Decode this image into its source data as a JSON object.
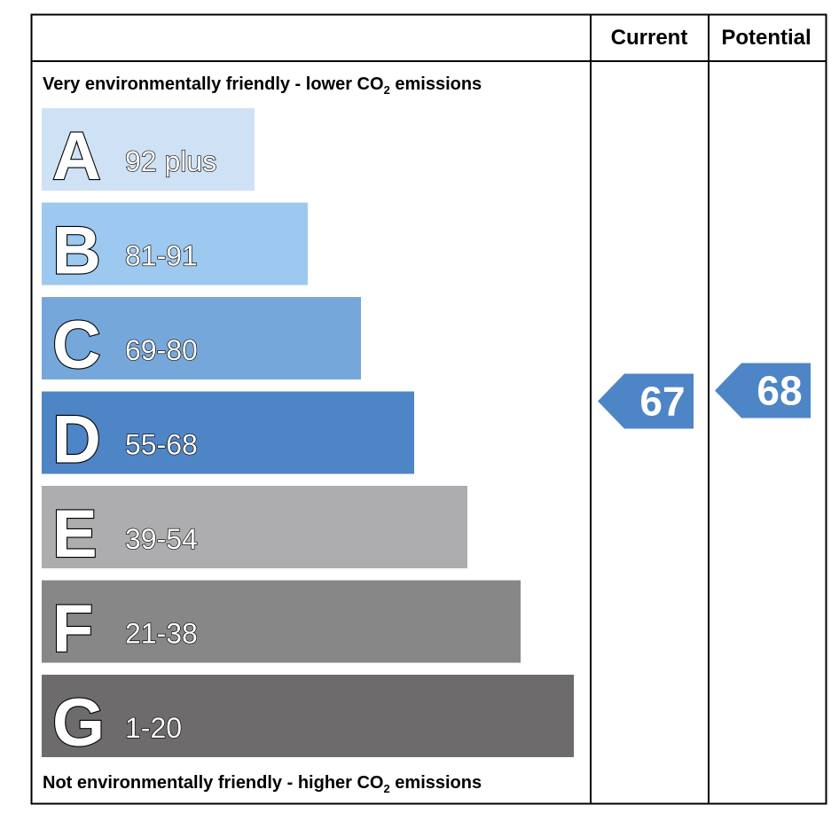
{
  "chart_data": {
    "type": "bar",
    "columns": {
      "current_label": "Current",
      "potential_label": "Potential"
    },
    "top_label": {
      "text": "Very environmentally friendly - lower CO",
      "sub": "2",
      "tail": " emissions"
    },
    "bottom_label": {
      "text": "Not environmentally friendly - higher CO",
      "sub": "2",
      "tail": " emissions"
    },
    "bands": [
      {
        "letter": "A",
        "range": "92 plus",
        "color": "#cfe2f5"
      },
      {
        "letter": "B",
        "range": "81-91",
        "color": "#9dc8ef"
      },
      {
        "letter": "C",
        "range": "69-80",
        "color": "#76a7da"
      },
      {
        "letter": "D",
        "range": "55-68",
        "color": "#4e85c6"
      },
      {
        "letter": "E",
        "range": "39-54",
        "color": "#adacae"
      },
      {
        "letter": "F",
        "range": "21-38",
        "color": "#868786"
      },
      {
        "letter": "G",
        "range": "1-20",
        "color": "#6d6b6c"
      }
    ],
    "current": {
      "value": "67",
      "band": "D",
      "color": "#4e85c6"
    },
    "potential": {
      "value": "68",
      "band": "D",
      "color": "#4e85c6"
    }
  }
}
